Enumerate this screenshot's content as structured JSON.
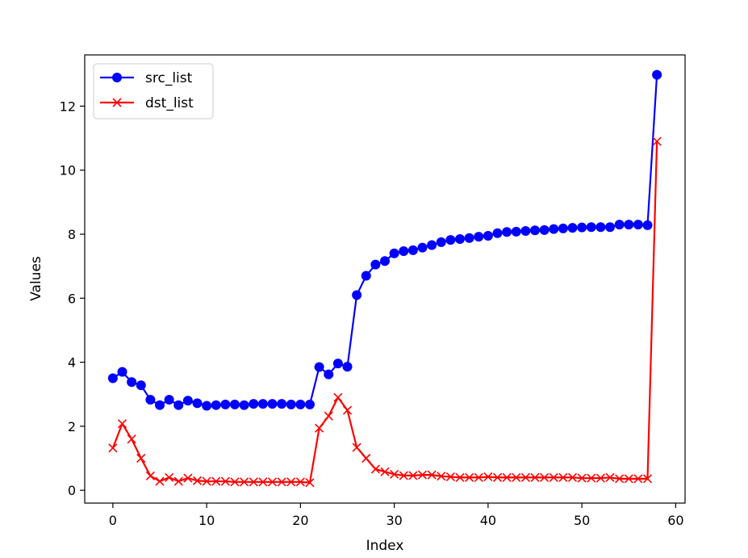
{
  "chart_data": {
    "type": "line",
    "xlabel": "Index",
    "ylabel": "Values",
    "xlim": [
      -3,
      61
    ],
    "ylim": [
      -0.4,
      13.6
    ],
    "xticks": [
      0,
      10,
      20,
      30,
      40,
      50,
      60
    ],
    "yticks": [
      0,
      2,
      4,
      6,
      8,
      10,
      12
    ],
    "grid": false,
    "legend_position": "top-left",
    "x": [
      0,
      1,
      2,
      3,
      4,
      5,
      6,
      7,
      8,
      9,
      10,
      11,
      12,
      13,
      14,
      15,
      16,
      17,
      18,
      19,
      20,
      21,
      22,
      23,
      24,
      25,
      26,
      27,
      28,
      29,
      30,
      31,
      32,
      33,
      34,
      35,
      36,
      37,
      38,
      39,
      40,
      41,
      42,
      43,
      44,
      45,
      46,
      47,
      48,
      49,
      50,
      51,
      52,
      53,
      54,
      55,
      56,
      57,
      58
    ],
    "series": [
      {
        "name": "src_list",
        "color": "#0000ff",
        "marker": "circle",
        "values": [
          3.5,
          3.7,
          3.38,
          3.28,
          2.83,
          2.66,
          2.83,
          2.66,
          2.8,
          2.72,
          2.64,
          2.66,
          2.68,
          2.68,
          2.66,
          2.7,
          2.7,
          2.7,
          2.7,
          2.68,
          2.68,
          2.68,
          3.85,
          3.62,
          3.96,
          3.86,
          6.1,
          6.7,
          7.05,
          7.16,
          7.4,
          7.47,
          7.5,
          7.58,
          7.66,
          7.75,
          7.82,
          7.85,
          7.88,
          7.92,
          7.95,
          8.03,
          8.07,
          8.08,
          8.1,
          8.12,
          8.13,
          8.16,
          8.18,
          8.2,
          8.21,
          8.22,
          8.22,
          8.22,
          8.3,
          8.3,
          8.3,
          8.28,
          12.98
        ]
      },
      {
        "name": "dst_list",
        "color": "#ff0000",
        "marker": "x",
        "values": [
          1.32,
          2.08,
          1.6,
          1.0,
          0.45,
          0.28,
          0.4,
          0.28,
          0.38,
          0.3,
          0.28,
          0.28,
          0.28,
          0.26,
          0.26,
          0.26,
          0.26,
          0.26,
          0.26,
          0.26,
          0.26,
          0.24,
          1.94,
          2.32,
          2.9,
          2.5,
          1.34,
          1.0,
          0.66,
          0.58,
          0.5,
          0.46,
          0.46,
          0.48,
          0.48,
          0.44,
          0.42,
          0.4,
          0.4,
          0.4,
          0.42,
          0.4,
          0.4,
          0.4,
          0.4,
          0.4,
          0.4,
          0.4,
          0.4,
          0.4,
          0.38,
          0.38,
          0.38,
          0.4,
          0.36,
          0.36,
          0.36,
          0.36,
          10.9
        ]
      }
    ]
  }
}
